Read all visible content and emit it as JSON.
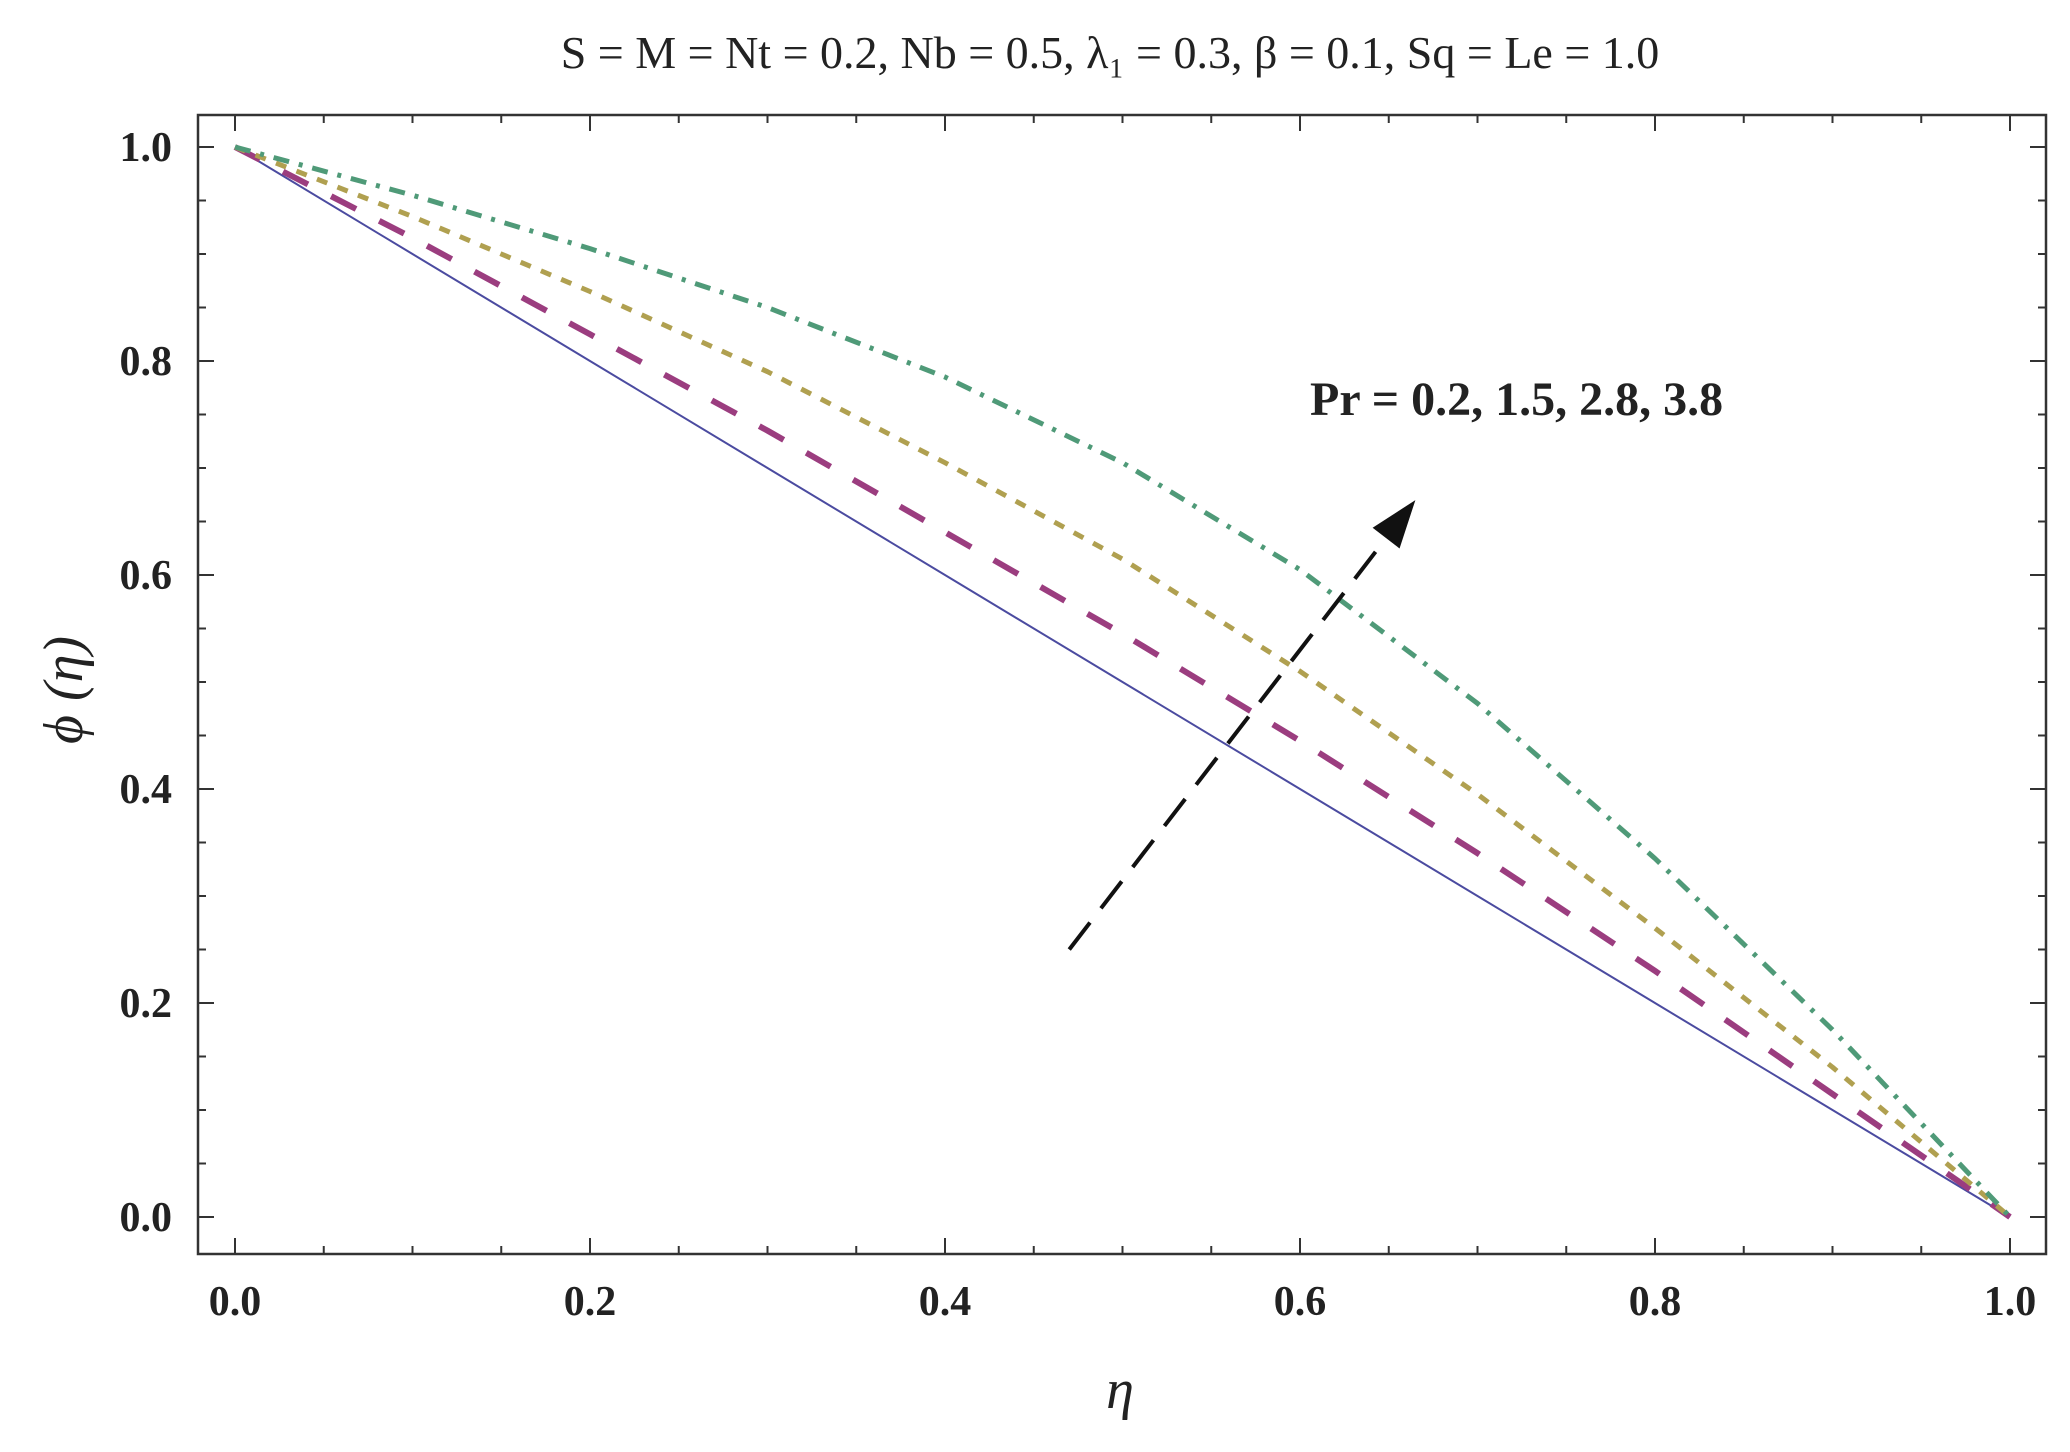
{
  "chart_data": {
    "type": "line",
    "title": "S = M = Nt = 0.2, Nb = 0.5, λ₁ = 0.3, β = 0.1, Sq = Le = 1.0",
    "xlabel": "η",
    "ylabel": "ϕ (η)",
    "xlim": [
      0.0,
      1.0
    ],
    "ylim": [
      0.0,
      1.0
    ],
    "x_ticks": [
      "0.0",
      "0.2",
      "0.4",
      "0.6",
      "0.8",
      "1.0"
    ],
    "y_ticks": [
      "0.0",
      "0.2",
      "0.4",
      "0.6",
      "0.8",
      "1.0"
    ],
    "grid": false,
    "legend": "none",
    "annotation": {
      "text": "Pr = 0.2, 1.5, 2.8, 3.8",
      "arrow_from": [
        0.47,
        0.25
      ],
      "arrow_to": [
        0.665,
        0.67
      ],
      "arrow_style": "dashed"
    },
    "x": [
      0.0,
      0.1,
      0.2,
      0.3,
      0.4,
      0.5,
      0.6,
      0.7,
      0.8,
      0.9,
      1.0
    ],
    "series": [
      {
        "values": [
          1.0,
          0.9,
          0.8,
          0.7,
          0.6,
          0.5,
          0.4,
          0.3,
          0.2,
          0.1,
          0.0
        ],
        "color": "#4b4ba0",
        "dash": "solid"
      },
      {
        "values": [
          1.0,
          0.915,
          0.825,
          0.735,
          0.64,
          0.545,
          0.445,
          0.34,
          0.23,
          0.115,
          0.0
        ],
        "color": "#9b3d7f",
        "dash": "long-dash"
      },
      {
        "values": [
          1.0,
          0.935,
          0.865,
          0.79,
          0.705,
          0.615,
          0.51,
          0.395,
          0.27,
          0.14,
          0.0
        ],
        "color": "#b0a050",
        "dash": "short-dash"
      },
      {
        "values": [
          1.0,
          0.955,
          0.905,
          0.85,
          0.785,
          0.705,
          0.605,
          0.48,
          0.335,
          0.175,
          0.0
        ],
        "color": "#4f9a78",
        "dash": "dash-dot"
      }
    ]
  }
}
